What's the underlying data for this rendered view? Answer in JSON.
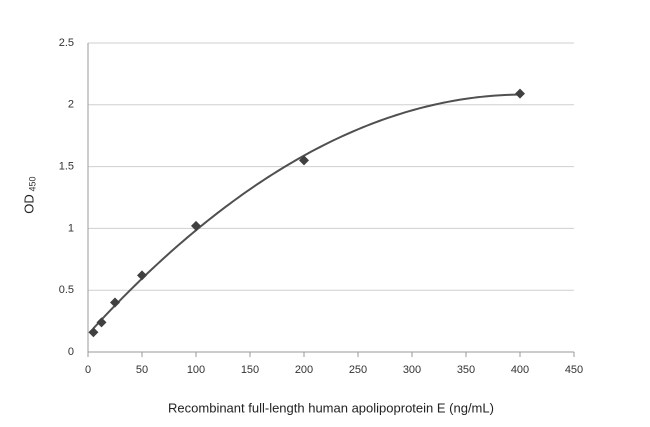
{
  "chart_data": {
    "type": "scatter",
    "x_label": "Recombinant full-length human apolipoprotein E (ng/mL)",
    "y_label": "OD",
    "y_label_subscript": "450",
    "x": [
      5,
      12.5,
      25,
      50,
      100,
      200,
      400
    ],
    "values": [
      0.16,
      0.24,
      0.4,
      0.62,
      1.02,
      1.55,
      2.09
    ],
    "color": "#404040",
    "trendline": "polynomial",
    "trendline_order": 2,
    "trendline_color": "#505050",
    "xlim": [
      0,
      450
    ],
    "xticks": [
      0,
      50,
      100,
      150,
      200,
      250,
      300,
      350,
      400,
      450
    ],
    "ylim": [
      0,
      2.5
    ],
    "yticks": [
      0,
      0.5,
      1,
      1.5,
      2,
      2.5
    ],
    "grid": true
  }
}
